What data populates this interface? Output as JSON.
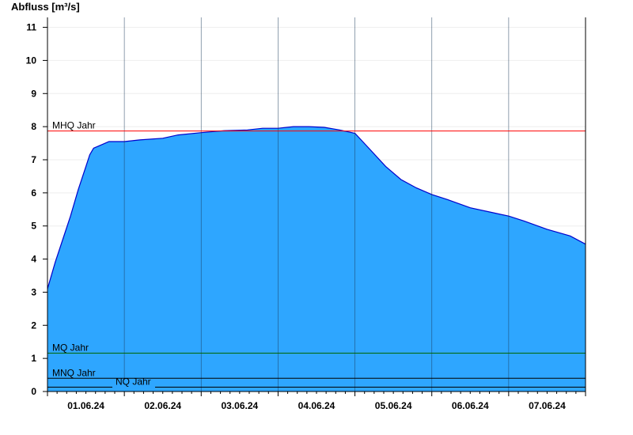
{
  "chart_data": {
    "type": "area",
    "ylabel": "Abfluss [m³/s]",
    "ylim": [
      0,
      11.3
    ],
    "xlim": [
      0,
      7
    ],
    "yticks": [
      "0",
      "1",
      "2",
      "3",
      "4",
      "5",
      "6",
      "7",
      "8",
      "9",
      "10",
      "11"
    ],
    "xtick_labels": [
      "01.06.24",
      "02.06.24",
      "03.06.24",
      "04.06.24",
      "05.06.24",
      "06.06.24",
      "07.06.24"
    ],
    "grid": true,
    "fill_color": "#2ea6ff",
    "line_color": "#0000cc",
    "series": [
      {
        "x": [
          0,
          0.1,
          0.2,
          0.3,
          0.4,
          0.5,
          0.55,
          0.6,
          0.7,
          0.8,
          1.0,
          1.2,
          1.5,
          1.7,
          2.0,
          2.3,
          2.6,
          2.8,
          3.0,
          3.2,
          3.4,
          3.6,
          3.8,
          4.0,
          4.2,
          4.4,
          4.6,
          4.8,
          5.0,
          5.2,
          5.5,
          5.8,
          6.0,
          6.2,
          6.5,
          6.8,
          7.0
        ],
        "y": [
          3.1,
          3.9,
          4.6,
          5.3,
          6.1,
          6.8,
          7.15,
          7.35,
          7.45,
          7.55,
          7.55,
          7.6,
          7.65,
          7.75,
          7.82,
          7.88,
          7.9,
          7.95,
          7.95,
          8.0,
          8.0,
          7.98,
          7.9,
          7.8,
          7.3,
          6.8,
          6.4,
          6.15,
          5.95,
          5.8,
          5.55,
          5.4,
          5.3,
          5.15,
          4.9,
          4.7,
          4.45
        ]
      }
    ],
    "reference_lines": [
      {
        "label": "MHQ Jahr",
        "value": 7.87,
        "color": "#ff0000"
      },
      {
        "label": "MQ Jahr",
        "value": 1.16,
        "color": "#006600"
      },
      {
        "label": "MNQ Jahr",
        "value": 0.4,
        "color": "#000000"
      },
      {
        "label": "NQ Jahr",
        "value": 0.13,
        "color": "#000000"
      }
    ]
  }
}
